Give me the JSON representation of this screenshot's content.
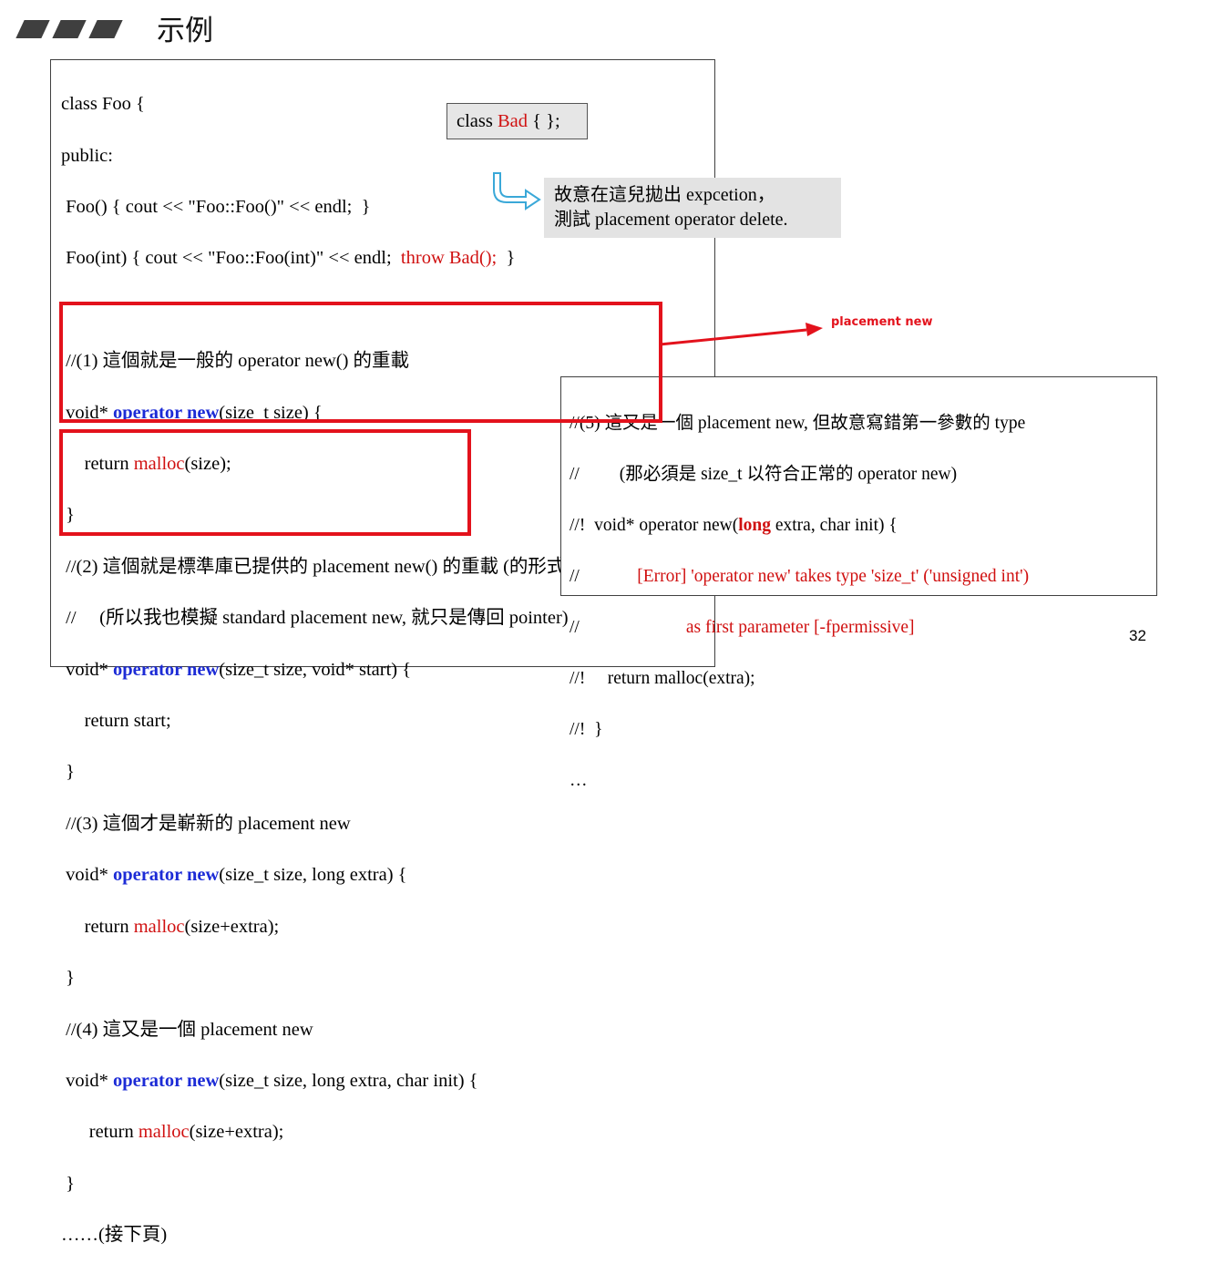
{
  "slide": {
    "title": "示例",
    "page_number": "32"
  },
  "main_code": {
    "l1": "class Foo {",
    "l2": "public:",
    "l3": " Foo() { cout << \"Foo::Foo()\" << endl;  }",
    "l4_a": " Foo(int) { cout << \"Foo::Foo(int)\" << endl;  ",
    "l4_b": "throw Bad();",
    "l4_c": "  }",
    "l6": " //(1) 這個就是一般的 operator new() 的重載",
    "l7_a": " void* ",
    "l7_b": "operator new",
    "l7_c": "(size_t size) {",
    "l8_a": "     return ",
    "l8_b": "malloc",
    "l8_c": "(size);",
    "l9": " }",
    "l10": " //(2) 這個就是標準庫已提供的 placement new() 的重載 (的形式)",
    "l11": " //     (所以我也模擬 standard placement new, 就只是傳回 pointer)",
    "l12_a": " void* ",
    "l12_b": "operator new",
    "l12_c": "(size_t size, void* start) {",
    "l13": "     return start;",
    "l14": " }",
    "l15": " //(3) 這個才是嶄新的 placement new",
    "l16_a": " void* ",
    "l16_b": "operator new",
    "l16_c": "(size_t size, long extra) {",
    "l17_a": "     return ",
    "l17_b": "malloc",
    "l17_c": "(size+extra);",
    "l18": " }",
    "l19": " //(4) 這又是一個 placement new",
    "l20_a": " void* ",
    "l20_b": "operator new",
    "l20_c": "(size_t size, long extra, char init) {",
    "l21_a": "      return ",
    "l21_b": "malloc",
    "l21_c": "(size+extra);",
    "l22": " }",
    "l23": "……(接下頁)"
  },
  "bad_class": {
    "prefix": "class ",
    "name": "Bad",
    "suffix": " { };"
  },
  "note": {
    "line1": "故意在這兒拋出 expcetion，",
    "line2": "測試 placement operator delete."
  },
  "annotation": {
    "label": "placement new"
  },
  "second_code": {
    "l1": "//(5) 這又是一個 placement new, 但故意寫錯第一參數的 type",
    "l2": "//         (那必須是 size_t 以符合正常的 operator new)",
    "l3_a": "//!  void* operator new(",
    "l3_b": "long",
    "l3_c": " extra, char init) {",
    "l4_a": "//             ",
    "l4_b": "[Error] 'operator new' takes type 'size_t' ('unsigned int')",
    "l5_a": "//                        ",
    "l5_b": "as first parameter [-fpermissive]",
    "l6": "//!     return malloc(extra);",
    "l7": "//!  }",
    "l8": "…"
  },
  "colors": {
    "keyword": "#1c2bd6",
    "highlight": "#d01010",
    "annotation": "#e3121c",
    "note_bg": "#e3e3e3"
  }
}
